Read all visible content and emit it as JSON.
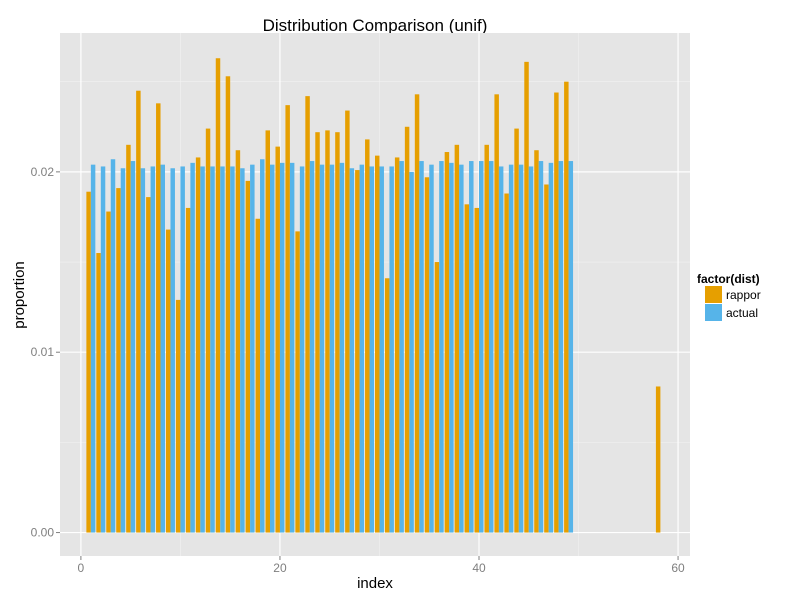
{
  "chart_data": {
    "type": "bar",
    "title": "Distribution Comparison (unif)",
    "xlabel": "index",
    "ylabel": "proportion",
    "xlim": [
      -2.1,
      61.2
    ],
    "ylim": [
      -0.0013,
      0.0277
    ],
    "x_ticks": [
      0,
      20,
      40,
      60
    ],
    "x_tick_labels": [
      "0",
      "20",
      "40",
      "60"
    ],
    "y_ticks": [
      0,
      0.01,
      0.02
    ],
    "y_tick_labels": [
      "0.00",
      "0.01",
      "0.02"
    ],
    "grid": true,
    "legend": {
      "title": "factor(dist)",
      "position": "right"
    },
    "series": [
      {
        "name": "rappor",
        "color": "#E69F00",
        "x": [
          1,
          2,
          3,
          4,
          5,
          6,
          7,
          8,
          9,
          10,
          11,
          12,
          13,
          14,
          15,
          16,
          17,
          18,
          19,
          20,
          21,
          22,
          23,
          24,
          25,
          26,
          27,
          28,
          29,
          30,
          31,
          32,
          33,
          34,
          35,
          36,
          37,
          38,
          39,
          40,
          41,
          42,
          43,
          44,
          45,
          46,
          47,
          48,
          49,
          58
        ],
        "values": [
          0.0189,
          0.0155,
          0.0178,
          0.0191,
          0.0215,
          0.0245,
          0.0186,
          0.0238,
          0.0168,
          0.0129,
          0.018,
          0.0208,
          0.0224,
          0.0263,
          0.0253,
          0.0212,
          0.0195,
          0.0174,
          0.0223,
          0.0214,
          0.0237,
          0.0167,
          0.0242,
          0.0222,
          0.0223,
          0.0222,
          0.0234,
          0.0201,
          0.0218,
          0.0209,
          0.0141,
          0.0208,
          0.0225,
          0.0243,
          0.0197,
          0.015,
          0.0211,
          0.0215,
          0.0182,
          0.018,
          0.0215,
          0.0243,
          0.0188,
          0.0224,
          0.0261,
          0.0212,
          0.0193,
          0.0244,
          0.025,
          0.0081
        ]
      },
      {
        "name": "actual",
        "color": "#56B4E9",
        "x": [
          1,
          2,
          3,
          4,
          5,
          6,
          7,
          8,
          9,
          10,
          11,
          12,
          13,
          14,
          15,
          16,
          17,
          18,
          19,
          20,
          21,
          22,
          23,
          24,
          25,
          26,
          27,
          28,
          29,
          30,
          31,
          32,
          33,
          34,
          35,
          36,
          37,
          38,
          39,
          40,
          41,
          42,
          43,
          44,
          45,
          46,
          47,
          48,
          49
        ],
        "values": [
          0.0204,
          0.0203,
          0.0207,
          0.0202,
          0.0206,
          0.0202,
          0.0203,
          0.0204,
          0.0202,
          0.0203,
          0.0205,
          0.0203,
          0.0203,
          0.0203,
          0.0203,
          0.0202,
          0.0204,
          0.0207,
          0.0204,
          0.0205,
          0.0205,
          0.0203,
          0.0206,
          0.0204,
          0.0204,
          0.0205,
          0.0202,
          0.0204,
          0.0203,
          0.0203,
          0.0203,
          0.0206,
          0.02,
          0.0206,
          0.0204,
          0.0206,
          0.0205,
          0.0204,
          0.0206,
          0.0206,
          0.0206,
          0.0203,
          0.0204,
          0.0204,
          0.0203,
          0.0206,
          0.0205,
          0.0206,
          0.0206
        ]
      }
    ]
  }
}
